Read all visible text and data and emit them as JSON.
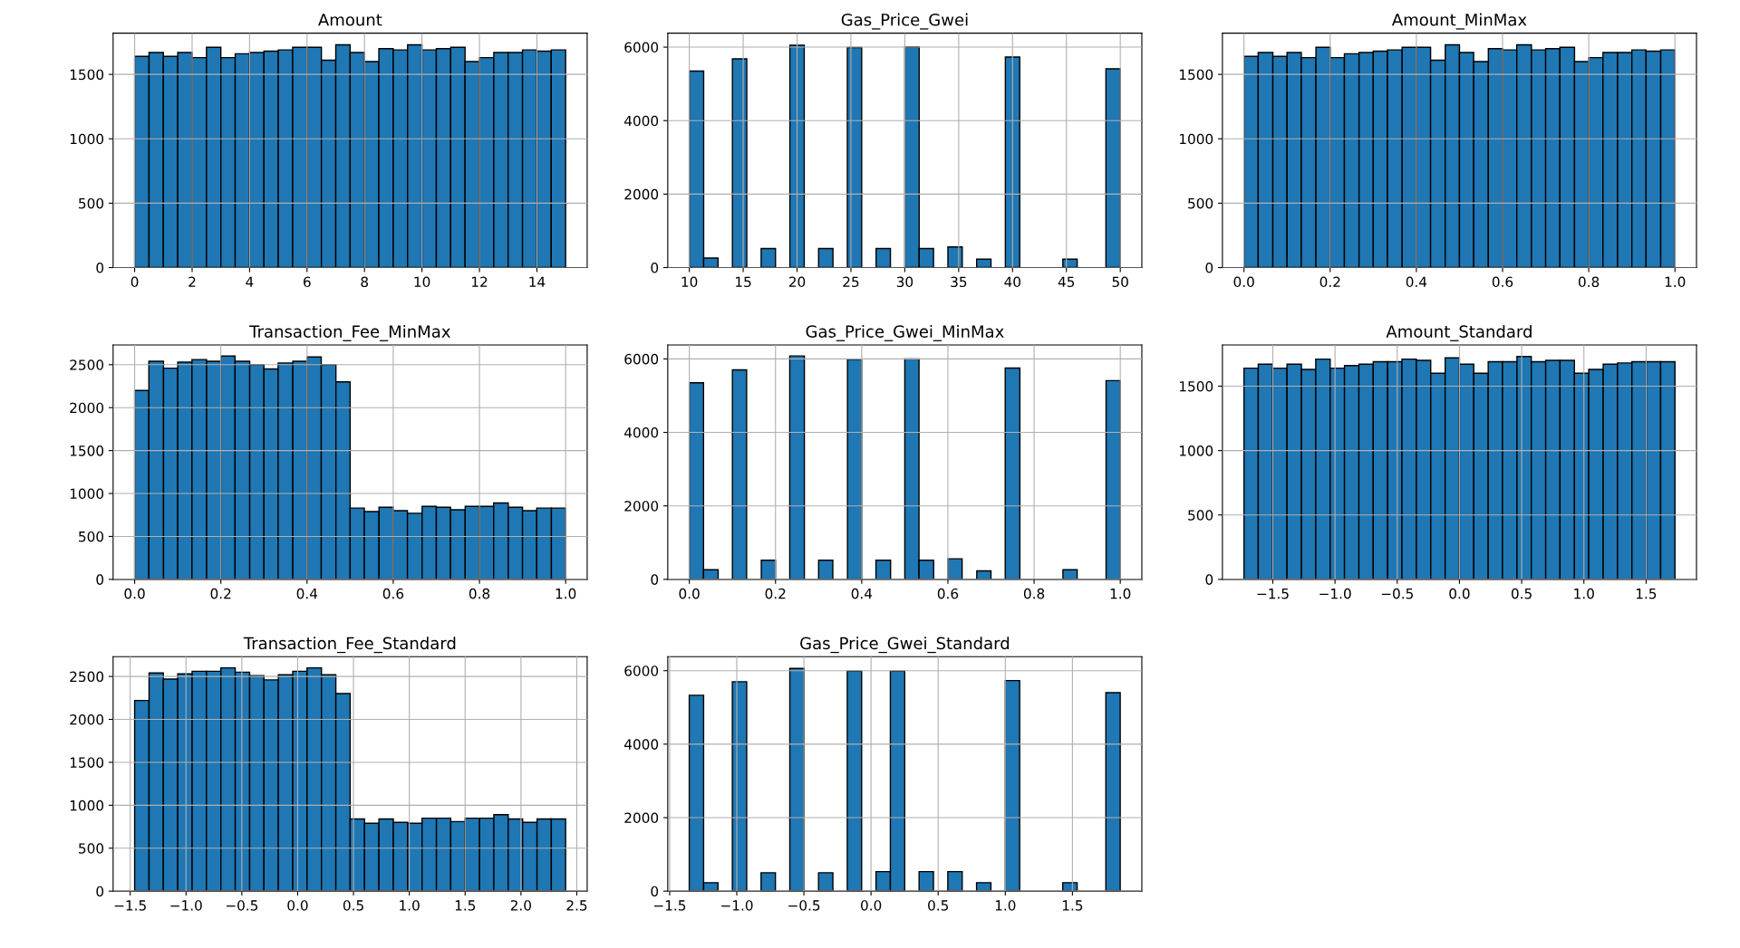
{
  "chart_data": [
    {
      "type": "histogram",
      "title": "Amount",
      "color": "#1f77b4",
      "grid": true,
      "xlim": [
        -0.75,
        15.75
      ],
      "ylim": [
        0,
        1820
      ],
      "xticks": [
        0,
        2,
        4,
        6,
        8,
        10,
        12,
        14
      ],
      "yticks": [
        0,
        500,
        1000,
        1500
      ],
      "bins": [
        0,
        0.5,
        1,
        1.5,
        2,
        2.5,
        3,
        3.5,
        4,
        4.5,
        5,
        5.5,
        6,
        6.5,
        7,
        7.5,
        8,
        8.5,
        9,
        9.5,
        10,
        10.5,
        11,
        11.5,
        12,
        12.5,
        13,
        13.5,
        14,
        14.5,
        15
      ],
      "values": [
        1640,
        1670,
        1640,
        1670,
        1630,
        1710,
        1630,
        1660,
        1670,
        1680,
        1690,
        1710,
        1710,
        1610,
        1730,
        1670,
        1600,
        1700,
        1690,
        1730,
        1690,
        1700,
        1710,
        1600,
        1630,
        1670,
        1670,
        1690,
        1680,
        1690
      ]
    },
    {
      "type": "histogram",
      "title": "Gas_Price_Gwei",
      "color": "#1f77b4",
      "grid": true,
      "xlim": [
        8,
        52
      ],
      "ylim": [
        0,
        6380
      ],
      "xticks": [
        10,
        15,
        20,
        25,
        30,
        35,
        40,
        45,
        50
      ],
      "yticks": [
        0,
        2000,
        4000,
        6000
      ],
      "bins": [
        10,
        11.333,
        12.667,
        14,
        15.333,
        16.667,
        18,
        19.333,
        20.667,
        22,
        23.333,
        24.667,
        26,
        27.333,
        28.667,
        30,
        31.333,
        32.667,
        34,
        35.333,
        36.667,
        38,
        39.333,
        40.667,
        42,
        43.333,
        44.667,
        46,
        47.333,
        48.667,
        50
      ],
      "values": [
        5350,
        260,
        0,
        5680,
        0,
        520,
        0,
        6050,
        0,
        520,
        0,
        5990,
        0,
        520,
        0,
        6000,
        520,
        0,
        560,
        0,
        230,
        0,
        5730,
        0,
        0,
        0,
        230,
        0,
        0,
        5410
      ]
    },
    {
      "type": "histogram",
      "title": "Amount_MinMax",
      "color": "#1f77b4",
      "grid": true,
      "xlim": [
        -0.05,
        1.05
      ],
      "ylim": [
        0,
        1820
      ],
      "xticks": [
        {
          "value": 0,
          "label": "0.0"
        },
        0.2,
        0.4,
        0.6,
        0.8,
        {
          "value": 1,
          "label": "1.0"
        }
      ],
      "yticks": [
        0,
        500,
        1000,
        1500
      ],
      "bins": [
        0,
        0.033,
        0.067,
        0.1,
        0.133,
        0.167,
        0.2,
        0.233,
        0.267,
        0.3,
        0.333,
        0.367,
        0.4,
        0.433,
        0.467,
        0.5,
        0.533,
        0.567,
        0.6,
        0.633,
        0.667,
        0.7,
        0.733,
        0.767,
        0.8,
        0.833,
        0.867,
        0.9,
        0.933,
        0.967,
        1
      ],
      "values": [
        1640,
        1670,
        1640,
        1670,
        1630,
        1710,
        1630,
        1660,
        1670,
        1680,
        1690,
        1710,
        1710,
        1610,
        1730,
        1670,
        1600,
        1700,
        1690,
        1730,
        1690,
        1700,
        1710,
        1600,
        1630,
        1670,
        1670,
        1690,
        1680,
        1690
      ]
    },
    {
      "type": "histogram",
      "title": "Transaction_Fee_MinMax",
      "color": "#1f77b4",
      "grid": true,
      "xlim": [
        -0.05,
        1.05
      ],
      "ylim": [
        0,
        2730
      ],
      "xticks": [
        {
          "value": 0,
          "label": "0.0"
        },
        0.2,
        0.4,
        0.6,
        0.8,
        {
          "value": 1,
          "label": "1.0"
        }
      ],
      "yticks": [
        0,
        500,
        1000,
        1500,
        2000,
        2500
      ],
      "bins": [
        0,
        0.033,
        0.067,
        0.1,
        0.133,
        0.167,
        0.2,
        0.233,
        0.267,
        0.3,
        0.333,
        0.367,
        0.4,
        0.433,
        0.467,
        0.5,
        0.533,
        0.567,
        0.6,
        0.633,
        0.667,
        0.7,
        0.733,
        0.767,
        0.8,
        0.833,
        0.867,
        0.9,
        0.933,
        0.967,
        1
      ],
      "values": [
        2200,
        2540,
        2460,
        2530,
        2560,
        2540,
        2600,
        2540,
        2500,
        2450,
        2520,
        2540,
        2590,
        2500,
        2300,
        830,
        790,
        840,
        800,
        770,
        850,
        840,
        810,
        850,
        850,
        890,
        840,
        800,
        830,
        830
      ]
    },
    {
      "type": "histogram",
      "title": "Gas_Price_Gwei_MinMax",
      "color": "#1f77b4",
      "grid": true,
      "xlim": [
        -0.05,
        1.05
      ],
      "ylim": [
        0,
        6380
      ],
      "xticks": [
        {
          "value": 0,
          "label": "0.0"
        },
        0.2,
        0.4,
        0.6,
        0.8,
        {
          "value": 1,
          "label": "1.0"
        }
      ],
      "yticks": [
        0,
        2000,
        4000,
        6000
      ],
      "bins": [
        0,
        0.033,
        0.067,
        0.1,
        0.133,
        0.167,
        0.2,
        0.233,
        0.267,
        0.3,
        0.333,
        0.367,
        0.4,
        0.433,
        0.467,
        0.5,
        0.533,
        0.567,
        0.6,
        0.633,
        0.667,
        0.7,
        0.733,
        0.767,
        0.8,
        0.833,
        0.867,
        0.9,
        0.933,
        0.967,
        1
      ],
      "values": [
        5350,
        260,
        0,
        5700,
        0,
        520,
        0,
        6080,
        0,
        520,
        0,
        5990,
        0,
        520,
        0,
        6000,
        520,
        0,
        560,
        0,
        230,
        0,
        5750,
        0,
        0,
        0,
        260,
        0,
        0,
        5410
      ]
    },
    {
      "type": "histogram",
      "title": "Amount_Standard",
      "color": "#1f77b4",
      "grid": true,
      "xlim": [
        -1.905,
        1.905
      ],
      "ylim": [
        0,
        1820
      ],
      "xticks": [
        {
          "value": -1.5,
          "label": "−1.5"
        },
        {
          "value": -1,
          "label": "−1.0"
        },
        {
          "value": -0.5,
          "label": "−0.5"
        },
        {
          "value": 0,
          "label": "0.0"
        },
        0.5,
        {
          "value": 1,
          "label": "1.0"
        },
        1.5
      ],
      "yticks": [
        0,
        500,
        1000,
        1500
      ],
      "bins": [
        -1.732,
        -1.617,
        -1.501,
        -1.386,
        -1.27,
        -1.155,
        -1.039,
        -0.924,
        -0.808,
        -0.693,
        -0.577,
        -0.462,
        -0.346,
        -0.231,
        -0.115,
        0,
        0.115,
        0.231,
        0.346,
        0.462,
        0.577,
        0.693,
        0.808,
        0.924,
        1.039,
        1.155,
        1.27,
        1.386,
        1.501,
        1.617,
        1.732
      ],
      "values": [
        1640,
        1670,
        1640,
        1670,
        1630,
        1710,
        1640,
        1660,
        1670,
        1690,
        1690,
        1710,
        1700,
        1600,
        1720,
        1670,
        1600,
        1690,
        1690,
        1730,
        1690,
        1700,
        1700,
        1600,
        1630,
        1670,
        1680,
        1690,
        1690,
        1690
      ]
    },
    {
      "type": "histogram",
      "title": "Transaction_Fee_Standard",
      "color": "#1f77b4",
      "grid": true,
      "xlim": [
        -1.653,
        2.593
      ],
      "ylim": [
        0,
        2730
      ],
      "xticks": [
        {
          "value": -1.5,
          "label": "−1.5"
        },
        {
          "value": -1,
          "label": "−1.0"
        },
        {
          "value": -0.5,
          "label": "−0.5"
        },
        {
          "value": 0,
          "label": "0.0"
        },
        0.5,
        {
          "value": 1,
          "label": "1.0"
        },
        1.5,
        {
          "value": 2,
          "label": "2.0"
        },
        2.5
      ],
      "yticks": [
        0,
        500,
        1000,
        1500,
        2000,
        2500
      ],
      "bins": [
        -1.46,
        -1.331,
        -1.203,
        -1.074,
        -0.945,
        -0.817,
        -0.688,
        -0.559,
        -0.43,
        -0.302,
        -0.173,
        -0.044,
        0.084,
        0.213,
        0.342,
        0.47,
        0.599,
        0.728,
        0.857,
        0.985,
        1.114,
        1.243,
        1.371,
        1.5,
        1.629,
        1.757,
        1.886,
        2.015,
        2.144,
        2.272,
        2.4
      ],
      "values": [
        2220,
        2540,
        2470,
        2530,
        2560,
        2560,
        2600,
        2550,
        2510,
        2460,
        2520,
        2560,
        2600,
        2520,
        2300,
        840,
        790,
        840,
        800,
        790,
        850,
        850,
        810,
        850,
        850,
        890,
        840,
        800,
        840,
        840
      ]
    },
    {
      "type": "histogram",
      "title": "Gas_Price_Gwei_Standard",
      "color": "#1f77b4",
      "grid": true,
      "xlim": [
        -1.514,
        2.017
      ],
      "ylim": [
        0,
        6380
      ],
      "xticks": [
        {
          "value": -1.5,
          "label": "−1.5"
        },
        {
          "value": -1,
          "label": "−1.0"
        },
        {
          "value": -0.5,
          "label": "−0.5"
        },
        {
          "value": 0,
          "label": "0.0"
        },
        0.5,
        {
          "value": 1,
          "label": "1.0"
        },
        1.5
      ],
      "yticks": [
        0,
        2000,
        4000,
        6000
      ],
      "bins": [
        -1.354,
        -1.247,
        -1.14,
        -1.033,
        -0.926,
        -0.819,
        -0.712,
        -0.605,
        -0.498,
        -0.391,
        -0.284,
        -0.177,
        -0.07,
        0.037,
        0.144,
        0.251,
        0.358,
        0.465,
        0.572,
        0.679,
        0.786,
        0.893,
        1.0,
        1.107,
        1.214,
        1.321,
        1.428,
        1.535,
        1.642,
        1.749,
        1.856
      ],
      "values": [
        5330,
        230,
        0,
        5700,
        0,
        500,
        0,
        6060,
        0,
        500,
        0,
        5990,
        0,
        530,
        5990,
        0,
        530,
        0,
        530,
        0,
        230,
        0,
        5730,
        0,
        0,
        0,
        230,
        0,
        0,
        5400
      ]
    }
  ]
}
